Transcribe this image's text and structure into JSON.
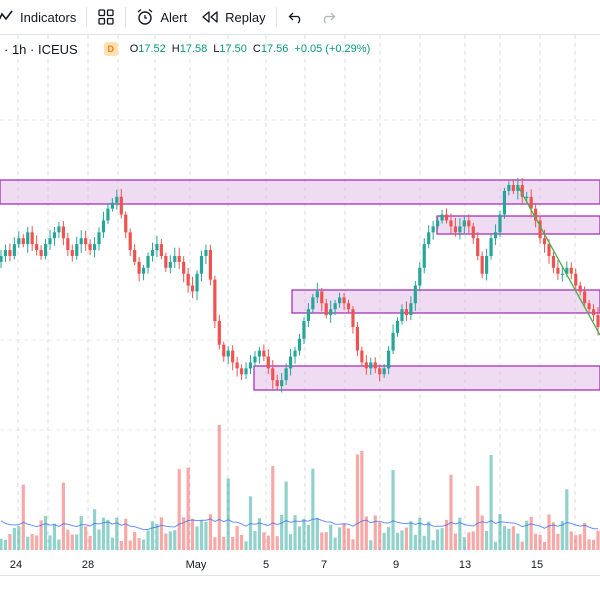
{
  "toolbar": {
    "indicators_label": "Indicators",
    "alert_label": "Alert",
    "replay_label": "Replay"
  },
  "legend": {
    "symbol": "· 1h · ICEUS",
    "badge": "D",
    "open_key": "O",
    "open_val": "17.52",
    "high_key": "H",
    "high_val": "17.58",
    "low_key": "L",
    "low_val": "17.50",
    "close_key": "C",
    "close_val": "17.56",
    "change": "+0.05 (+0.29%)"
  },
  "colors": {
    "up": "#26a69a",
    "down": "#ef5350",
    "zone_fill": "#e1bee7",
    "zone_border": "#9c27b0",
    "trendline": "#4caf50",
    "volume_ma": "#2962ff"
  },
  "chart_data": {
    "type": "candlestick",
    "x_tick_labels": [
      "24",
      "28",
      "May",
      "5",
      "7",
      "9",
      "13",
      "15"
    ],
    "price_path": [
      17.6,
      17.61,
      17.6,
      17.62,
      17.63,
      17.62,
      17.64,
      17.62,
      17.61,
      17.6,
      17.62,
      17.63,
      17.64,
      17.65,
      17.63,
      17.61,
      17.6,
      17.62,
      17.63,
      17.62,
      17.61,
      17.62,
      17.64,
      17.66,
      17.68,
      17.69,
      17.7,
      17.67,
      17.64,
      17.61,
      17.59,
      17.57,
      17.58,
      17.6,
      17.61,
      17.62,
      17.6,
      17.58,
      17.59,
      17.6,
      17.59,
      17.57,
      17.55,
      17.54,
      17.57,
      17.6,
      17.61,
      17.56,
      17.49,
      17.45,
      17.43,
      17.44,
      17.42,
      17.41,
      17.4,
      17.41,
      17.42,
      17.43,
      17.44,
      17.43,
      17.41,
      17.39,
      17.38,
      17.39,
      17.41,
      17.43,
      17.44,
      17.46,
      17.49,
      17.51,
      17.53,
      17.54,
      17.52,
      17.5,
      17.51,
      17.52,
      17.53,
      17.52,
      17.51,
      17.48,
      17.44,
      17.42,
      17.41,
      17.42,
      17.41,
      17.4,
      17.41,
      17.44,
      17.47,
      17.49,
      17.51,
      17.5,
      17.52,
      17.55,
      17.58,
      17.62,
      17.64,
      17.65,
      17.66,
      17.67,
      17.66,
      17.65,
      17.64,
      17.65,
      17.66,
      17.65,
      17.63,
      17.6,
      17.57,
      17.6,
      17.63,
      17.64,
      17.67,
      17.71,
      17.72,
      17.71,
      17.72,
      17.7,
      17.7,
      17.68,
      17.66,
      17.63,
      17.62,
      17.6,
      17.58,
      17.57,
      17.57,
      17.58,
      17.57,
      17.55,
      17.54,
      17.52,
      17.51,
      17.5,
      17.48
    ]
  }
}
